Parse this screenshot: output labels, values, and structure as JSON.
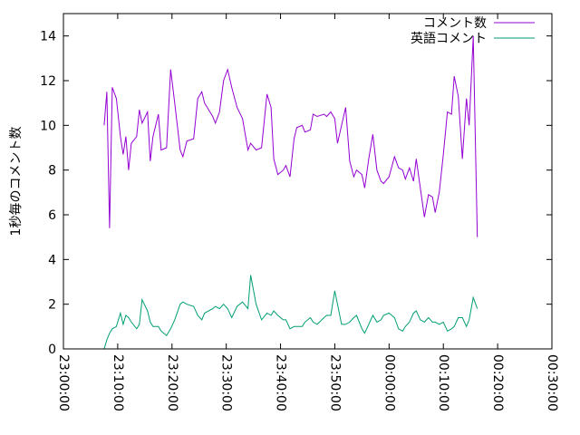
{
  "chart_data": {
    "type": "line",
    "title": "",
    "xlabel": "",
    "ylabel": "1秒毎のコメント数",
    "xlim": [
      "23:00:00",
      "00:30:00"
    ],
    "ylim": [
      0,
      15
    ],
    "x_ticks": [
      "23:00:00",
      "23:10:00",
      "23:20:00",
      "23:30:00",
      "23:40:00",
      "23:50:00",
      "00:00:00",
      "00:10:00",
      "00:20:00",
      "00:30:00"
    ],
    "y_ticks": [
      0,
      2,
      4,
      6,
      8,
      10,
      12,
      14
    ],
    "grid": false,
    "legend_position": "top-right",
    "series": [
      {
        "name": "コメント数",
        "color": "#9400d3",
        "points": [
          [
            "23:07:30",
            10.0
          ],
          [
            "23:08:00",
            11.5
          ],
          [
            "23:08:30",
            5.4
          ],
          [
            "23:09:00",
            11.7
          ],
          [
            "23:09:45",
            11.2
          ],
          [
            "23:10:30",
            9.5
          ],
          [
            "23:11:00",
            8.7
          ],
          [
            "23:11:30",
            9.5
          ],
          [
            "23:12:00",
            8.0
          ],
          [
            "23:12:30",
            9.2
          ],
          [
            "23:13:30",
            9.5
          ],
          [
            "23:14:00",
            10.7
          ],
          [
            "23:14:30",
            10.1
          ],
          [
            "23:15:30",
            10.6
          ],
          [
            "23:16:00",
            8.4
          ],
          [
            "23:16:30",
            9.5
          ],
          [
            "23:17:30",
            10.5
          ],
          [
            "23:18:00",
            8.9
          ],
          [
            "23:19:00",
            9.0
          ],
          [
            "23:19:45",
            12.5
          ],
          [
            "23:20:30",
            11.0
          ],
          [
            "23:21:30",
            8.9
          ],
          [
            "23:22:00",
            8.6
          ],
          [
            "23:22:45",
            9.3
          ],
          [
            "23:24:00",
            9.4
          ],
          [
            "23:24:45",
            11.2
          ],
          [
            "23:25:30",
            11.5
          ],
          [
            "23:26:00",
            11.0
          ],
          [
            "23:27:30",
            10.4
          ],
          [
            "23:28:00",
            10.1
          ],
          [
            "23:28:45",
            10.6
          ],
          [
            "23:29:30",
            12.0
          ],
          [
            "23:30:15",
            12.5
          ],
          [
            "23:31:00",
            11.7
          ],
          [
            "23:32:00",
            10.8
          ],
          [
            "23:33:00",
            10.3
          ],
          [
            "23:34:00",
            8.9
          ],
          [
            "23:34:30",
            9.2
          ],
          [
            "23:35:30",
            8.9
          ],
          [
            "23:36:30",
            9.0
          ],
          [
            "23:37:30",
            11.4
          ],
          [
            "23:38:15",
            10.8
          ],
          [
            "23:38:45",
            8.5
          ],
          [
            "23:39:30",
            7.8
          ],
          [
            "23:40:30",
            8.0
          ],
          [
            "23:41:00",
            8.2
          ],
          [
            "23:41:45",
            7.7
          ],
          [
            "23:42:30",
            9.4
          ],
          [
            "23:43:00",
            9.9
          ],
          [
            "23:44:00",
            10.0
          ],
          [
            "23:44:30",
            9.7
          ],
          [
            "23:45:30",
            9.8
          ],
          [
            "23:46:00",
            10.5
          ],
          [
            "23:46:45",
            10.4
          ],
          [
            "23:48:00",
            10.5
          ],
          [
            "23:48:30",
            10.4
          ],
          [
            "23:49:15",
            10.6
          ],
          [
            "23:50:00",
            10.3
          ],
          [
            "23:50:30",
            9.2
          ],
          [
            "23:51:15",
            10.0
          ],
          [
            "23:52:00",
            10.8
          ],
          [
            "23:52:45",
            8.4
          ],
          [
            "23:53:30",
            7.7
          ],
          [
            "23:54:00",
            8.0
          ],
          [
            "23:55:00",
            7.8
          ],
          [
            "23:55:30",
            7.2
          ],
          [
            "23:56:15",
            8.5
          ],
          [
            "23:57:00",
            9.6
          ],
          [
            "23:57:45",
            8.0
          ],
          [
            "23:58:30",
            7.5
          ],
          [
            "23:59:00",
            7.4
          ],
          [
            "00:00:00",
            7.7
          ],
          [
            "00:01:00",
            8.6
          ],
          [
            "00:01:45",
            8.1
          ],
          [
            "00:02:30",
            8.0
          ],
          [
            "00:03:00",
            7.6
          ],
          [
            "00:03:45",
            8.1
          ],
          [
            "00:04:30",
            7.5
          ],
          [
            "00:05:00",
            8.5
          ],
          [
            "00:05:45",
            7.2
          ],
          [
            "00:06:30",
            5.9
          ],
          [
            "00:07:15",
            6.9
          ],
          [
            "00:08:00",
            6.8
          ],
          [
            "00:08:30",
            6.1
          ],
          [
            "00:09:15",
            7.0
          ],
          [
            "00:10:00",
            8.7
          ],
          [
            "00:10:45",
            10.6
          ],
          [
            "00:11:30",
            10.5
          ],
          [
            "00:12:00",
            12.2
          ],
          [
            "00:12:45",
            11.3
          ],
          [
            "00:13:30",
            8.5
          ],
          [
            "00:14:15",
            11.2
          ],
          [
            "00:14:45",
            10.0
          ],
          [
            "00:15:30",
            14.0
          ],
          [
            "00:16:15",
            5.0
          ]
        ]
      },
      {
        "name": "英語コメント",
        "color": "#009e73",
        "points": [
          [
            "23:07:30",
            0.0
          ],
          [
            "23:08:00",
            0.4
          ],
          [
            "23:08:30",
            0.7
          ],
          [
            "23:09:00",
            0.9
          ],
          [
            "23:09:45",
            1.0
          ],
          [
            "23:10:30",
            1.6
          ],
          [
            "23:11:00",
            1.1
          ],
          [
            "23:11:30",
            1.5
          ],
          [
            "23:12:00",
            1.4
          ],
          [
            "23:12:30",
            1.2
          ],
          [
            "23:13:30",
            0.9
          ],
          [
            "23:14:00",
            1.1
          ],
          [
            "23:14:30",
            2.2
          ],
          [
            "23:15:30",
            1.7
          ],
          [
            "23:16:00",
            1.2
          ],
          [
            "23:16:30",
            1.0
          ],
          [
            "23:17:30",
            1.0
          ],
          [
            "23:18:00",
            0.8
          ],
          [
            "23:19:00",
            0.6
          ],
          [
            "23:19:45",
            0.9
          ],
          [
            "23:20:30",
            1.3
          ],
          [
            "23:21:30",
            2.0
          ],
          [
            "23:22:00",
            2.1
          ],
          [
            "23:22:45",
            2.0
          ],
          [
            "23:24:00",
            1.9
          ],
          [
            "23:24:45",
            1.5
          ],
          [
            "23:25:30",
            1.3
          ],
          [
            "23:26:00",
            1.6
          ],
          [
            "23:27:30",
            1.8
          ],
          [
            "23:28:00",
            1.9
          ],
          [
            "23:28:45",
            1.8
          ],
          [
            "23:29:30",
            2.0
          ],
          [
            "23:30:15",
            1.8
          ],
          [
            "23:31:00",
            1.4
          ],
          [
            "23:32:00",
            1.9
          ],
          [
            "23:33:00",
            2.1
          ],
          [
            "23:34:00",
            1.8
          ],
          [
            "23:34:30",
            3.3
          ],
          [
            "23:35:30",
            2.0
          ],
          [
            "23:36:30",
            1.3
          ],
          [
            "23:37:30",
            1.6
          ],
          [
            "23:38:15",
            1.5
          ],
          [
            "23:38:45",
            1.7
          ],
          [
            "23:39:30",
            1.5
          ],
          [
            "23:40:30",
            1.3
          ],
          [
            "23:41:00",
            1.3
          ],
          [
            "23:41:45",
            0.9
          ],
          [
            "23:42:30",
            1.0
          ],
          [
            "23:43:00",
            1.0
          ],
          [
            "23:44:00",
            1.0
          ],
          [
            "23:44:30",
            1.2
          ],
          [
            "23:45:30",
            1.4
          ],
          [
            "23:46:00",
            1.2
          ],
          [
            "23:46:45",
            1.1
          ],
          [
            "23:48:00",
            1.4
          ],
          [
            "23:48:30",
            1.5
          ],
          [
            "23:49:15",
            1.5
          ],
          [
            "23:50:00",
            2.6
          ],
          [
            "23:50:30",
            2.0
          ],
          [
            "23:51:15",
            1.1
          ],
          [
            "23:52:00",
            1.1
          ],
          [
            "23:52:45",
            1.2
          ],
          [
            "23:53:30",
            1.4
          ],
          [
            "23:54:00",
            1.5
          ],
          [
            "23:55:00",
            0.9
          ],
          [
            "23:55:30",
            0.7
          ],
          [
            "23:56:15",
            1.1
          ],
          [
            "23:57:00",
            1.5
          ],
          [
            "23:57:45",
            1.2
          ],
          [
            "23:58:30",
            1.3
          ],
          [
            "23:59:00",
            1.5
          ],
          [
            "00:00:00",
            1.6
          ],
          [
            "00:01:00",
            1.4
          ],
          [
            "00:01:45",
            0.9
          ],
          [
            "00:02:30",
            0.8
          ],
          [
            "00:03:00",
            1.0
          ],
          [
            "00:03:45",
            1.2
          ],
          [
            "00:04:30",
            1.6
          ],
          [
            "00:05:00",
            1.7
          ],
          [
            "00:05:45",
            1.3
          ],
          [
            "00:06:30",
            1.2
          ],
          [
            "00:07:15",
            1.4
          ],
          [
            "00:08:00",
            1.2
          ],
          [
            "00:08:30",
            1.2
          ],
          [
            "00:09:15",
            1.1
          ],
          [
            "00:10:00",
            1.2
          ],
          [
            "00:10:45",
            0.8
          ],
          [
            "00:11:30",
            0.9
          ],
          [
            "00:12:00",
            1.0
          ],
          [
            "00:12:45",
            1.4
          ],
          [
            "00:13:30",
            1.4
          ],
          [
            "00:14:15",
            1.0
          ],
          [
            "00:14:45",
            1.3
          ],
          [
            "00:15:30",
            2.3
          ],
          [
            "00:16:15",
            1.8
          ]
        ]
      }
    ]
  }
}
